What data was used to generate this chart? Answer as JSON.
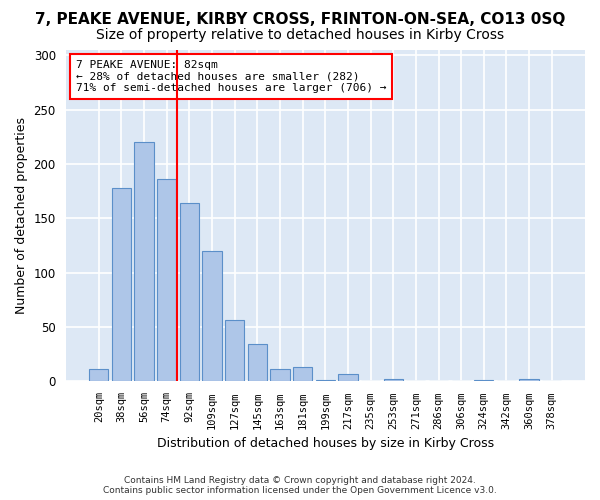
{
  "title": "7, PEAKE AVENUE, KIRBY CROSS, FRINTON-ON-SEA, CO13 0SQ",
  "subtitle": "Size of property relative to detached houses in Kirby Cross",
  "xlabel": "Distribution of detached houses by size in Kirby Cross",
  "ylabel": "Number of detached properties",
  "categories": [
    "20sqm",
    "38sqm",
    "56sqm",
    "74sqm",
    "92sqm",
    "109sqm",
    "127sqm",
    "145sqm",
    "163sqm",
    "181sqm",
    "199sqm",
    "217sqm",
    "235sqm",
    "253sqm",
    "271sqm",
    "286sqm",
    "306sqm",
    "324sqm",
    "342sqm",
    "360sqm",
    "378sqm"
  ],
  "values": [
    11,
    178,
    220,
    186,
    164,
    120,
    57,
    34,
    11,
    13,
    1,
    7,
    0,
    2,
    0,
    0,
    0,
    1,
    0,
    2,
    0
  ],
  "bar_color": "#aec6e8",
  "bar_edge_color": "#5b8fc9",
  "vline_color": "red",
  "annotation_text": "7 PEAKE AVENUE: 82sqm\n← 28% of detached houses are smaller (282)\n71% of semi-detached houses are larger (706) →",
  "annotation_box_color": "white",
  "annotation_box_edge": "red",
  "ylim": [
    0,
    305
  ],
  "yticks": [
    0,
    50,
    100,
    150,
    200,
    250,
    300
  ],
  "footer_line1": "Contains HM Land Registry data © Crown copyright and database right 2024.",
  "footer_line2": "Contains public sector information licensed under the Open Government Licence v3.0.",
  "background_color": "#dde8f5",
  "title_fontsize": 11,
  "subtitle_fontsize": 10,
  "xlabel_fontsize": 9,
  "ylabel_fontsize": 9
}
